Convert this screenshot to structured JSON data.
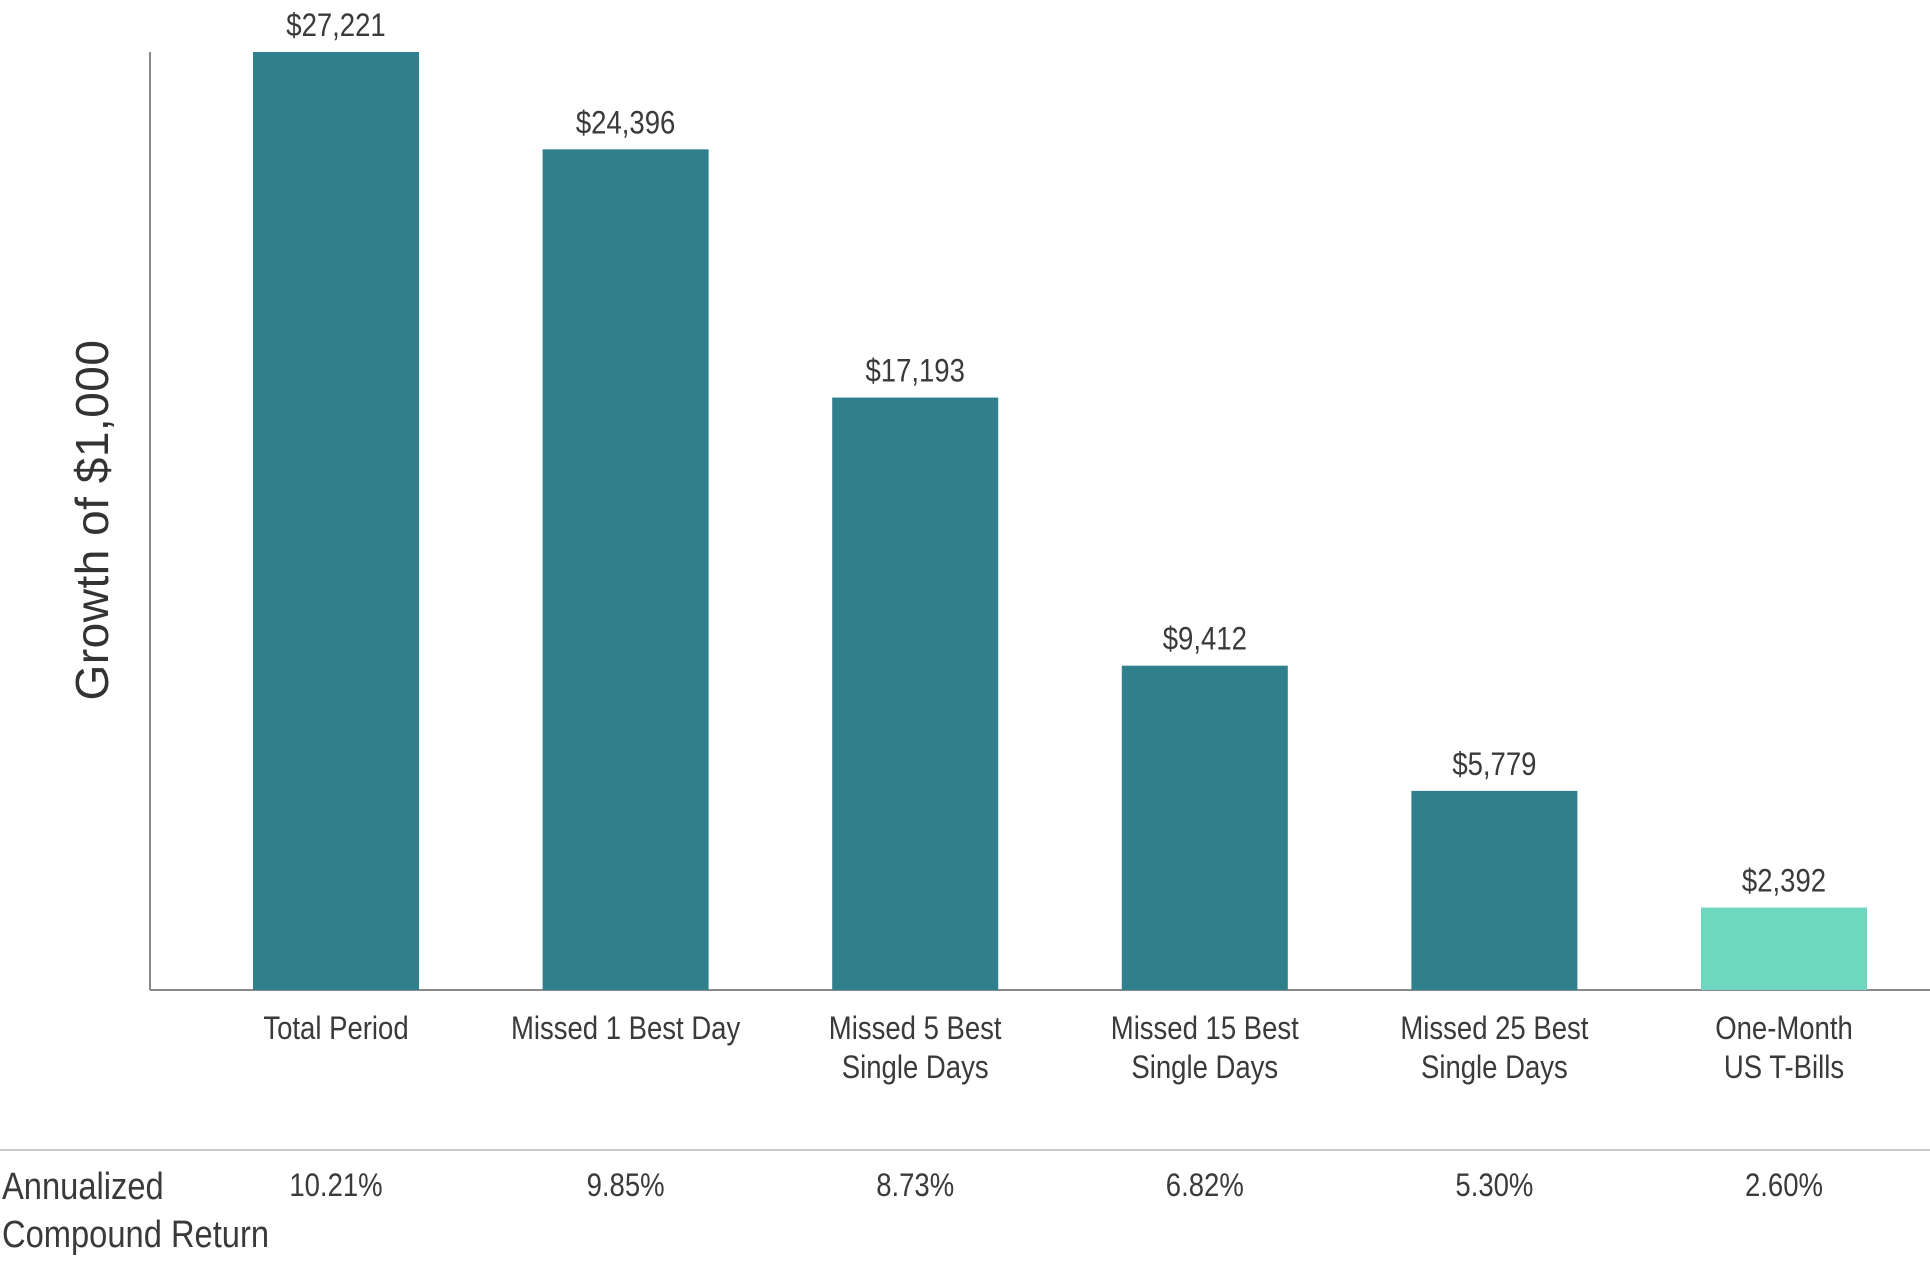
{
  "chart_data": {
    "type": "bar",
    "title": "",
    "xlabel": "",
    "ylabel": "Growth of $1,000",
    "ylim": [
      0,
      27221
    ],
    "grid": false,
    "categories": [
      [
        "Total Period"
      ],
      [
        "Missed 1 Best Day"
      ],
      [
        "Missed 5 Best",
        "Single Days"
      ],
      [
        "Missed 15 Best",
        "Single Days"
      ],
      [
        "Missed 25 Best",
        "Single Days"
      ],
      [
        "One-Month",
        "US T-Bills"
      ]
    ],
    "values": [
      27221,
      24396,
      17193,
      9412,
      5779,
      2392
    ],
    "value_labels": [
      "$27,221",
      "$24,396",
      "$17,193",
      "$9,412",
      "$5,779",
      "$2,392"
    ],
    "colors": [
      "#2f7f8c",
      "#2f7f8c",
      "#2f7f8c",
      "#2f7f8c",
      "#2f7f8c",
      "#6fd6bf"
    ],
    "annualized_compound_return": {
      "label": [
        "Annualized",
        "Compound Return"
      ],
      "values": [
        "10.21%",
        "9.85%",
        "8.73%",
        "6.82%",
        "5.30%",
        "2.60%"
      ]
    }
  }
}
